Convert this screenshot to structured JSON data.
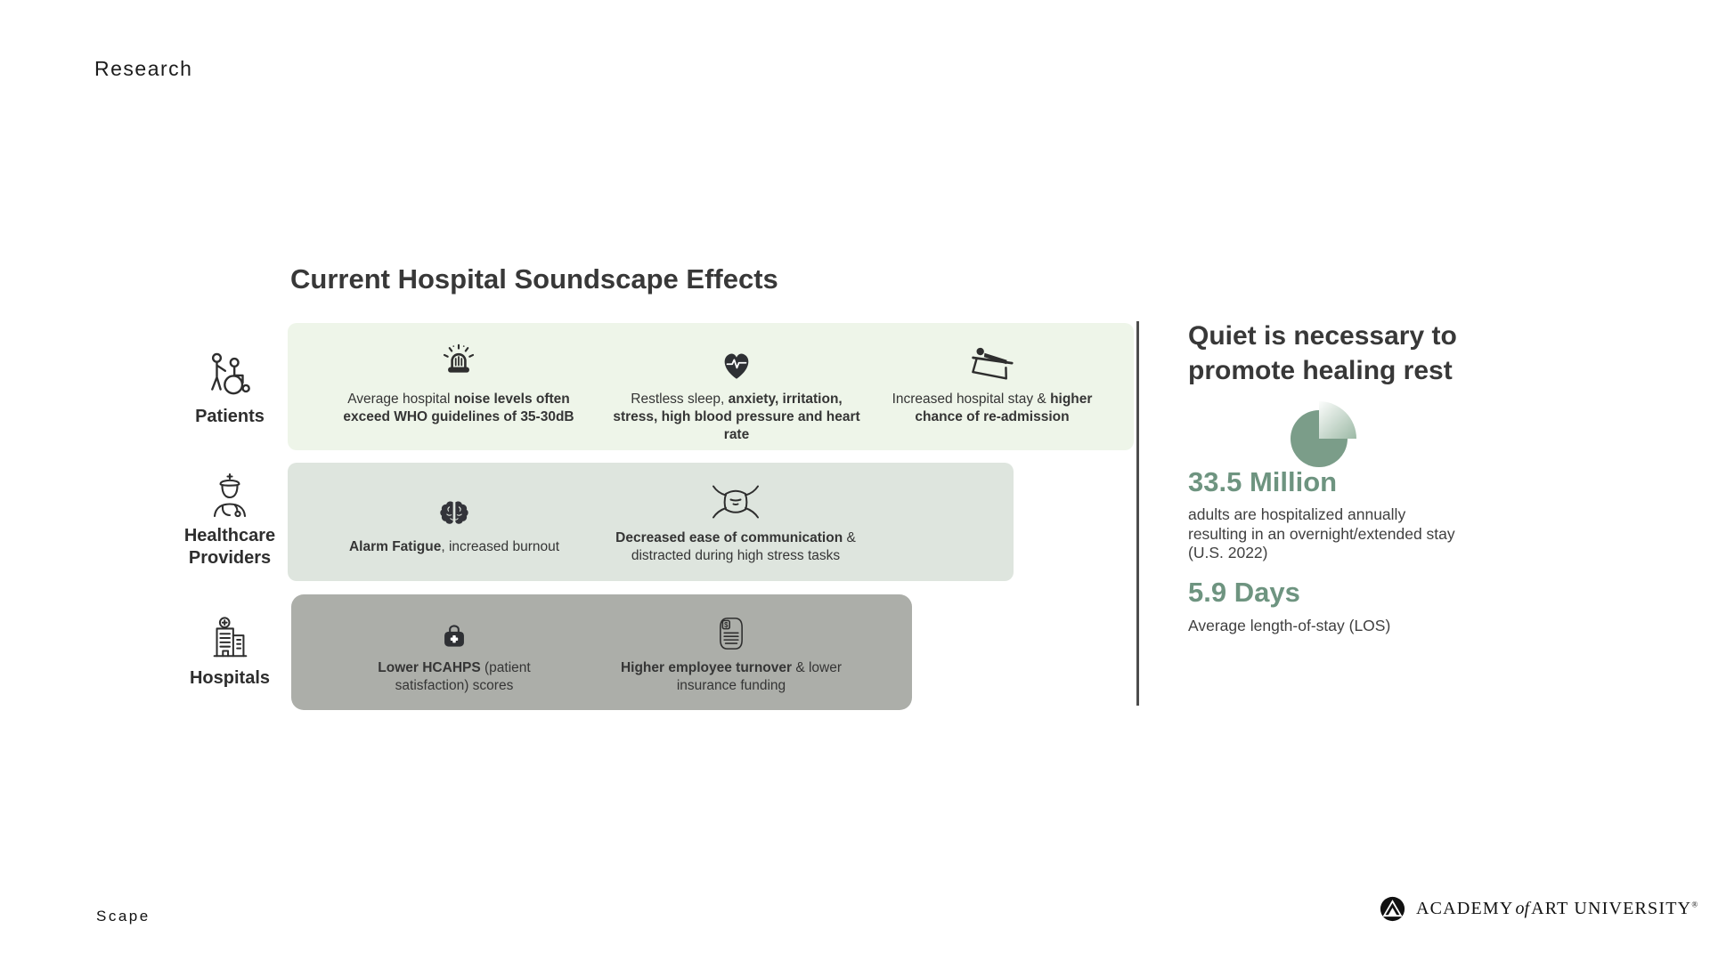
{
  "page": {
    "kicker": "Research",
    "footer_word": "Scape"
  },
  "diagram": {
    "title": "Current Hospital Soundscape Effects",
    "rows": [
      {
        "label": "Patients",
        "icon": "wheelchair-patient-icon",
        "cells": [
          {
            "icon": "siren-icon",
            "segments": [
              {
                "text": "Average hospital ",
                "bold": false
              },
              {
                "text": "noise levels often exceed WHO guidelines of 35-30dB",
                "bold": true
              }
            ]
          },
          {
            "icon": "heart-pulse-icon",
            "segments": [
              {
                "text": "Restless sleep, ",
                "bold": false
              },
              {
                "text": "anxiety, irritation, stress, high blood pressure and heart rate",
                "bold": true
              }
            ]
          },
          {
            "icon": "hospital-bed-icon",
            "segments": [
              {
                "text": "Increased hospital stay & ",
                "bold": false
              },
              {
                "text": "higher chance of re-admission",
                "bold": true
              }
            ]
          }
        ]
      },
      {
        "label": "Healthcare Providers",
        "icon": "nurse-icon",
        "cells": [
          {
            "icon": "brain-icon",
            "segments": [
              {
                "text": "Alarm Fatigue",
                "bold": true
              },
              {
                "text": ", increased burnout",
                "bold": false
              }
            ]
          },
          {
            "icon": "face-mask-icon",
            "segments": [
              {
                "text": "Decreased ease of communication",
                "bold": true
              },
              {
                "text": " & distracted during high stress tasks",
                "bold": false
              }
            ]
          }
        ]
      },
      {
        "label": "Hospitals",
        "icon": "hospital-building-icon",
        "cells": [
          {
            "icon": "medical-bag-icon",
            "segments": [
              {
                "text": "Lower HCAHPS",
                "bold": true
              },
              {
                "text": " (patient satisfaction) scores",
                "bold": false
              }
            ]
          },
          {
            "icon": "money-document-icon",
            "segments": [
              {
                "text": "Higher employee turnover",
                "bold": true
              },
              {
                "text": " & lower insurance funding",
                "bold": false
              }
            ]
          }
        ]
      }
    ]
  },
  "sidebar": {
    "heading": "Quiet is necessary to promote healing rest",
    "stats": [
      {
        "value": "33.5 Million",
        "description": "adults are hospitalized annually resulting in an overnight/extended stay (U.S. 2022)"
      },
      {
        "value": "5.9 Days",
        "description": "Average length-of-stay (LOS)"
      }
    ]
  },
  "chart_data": {
    "type": "pie",
    "title": "",
    "slices": [
      {
        "label": "highlighted quarter",
        "value": 25
      },
      {
        "label": "remainder",
        "value": 75
      }
    ],
    "legend": false,
    "note": "decorative quarter-highlight pie beside hospitalization statistic"
  },
  "footer": {
    "brand": {
      "word1": "ACADEMY",
      "word2": "of",
      "word3": "ART UNIVERSITY",
      "registered": "®"
    }
  },
  "colors": {
    "accent_green": "#6e9480",
    "band_patients": "#eef5e9",
    "band_providers": "#dee5de",
    "band_hospitals": "#acaea9",
    "pie_main": "#7b9d89",
    "pie_wedge_from": "#fcfdfc",
    "pie_wedge_to": "#9cb9a5",
    "divider": "#4d4d4d"
  }
}
